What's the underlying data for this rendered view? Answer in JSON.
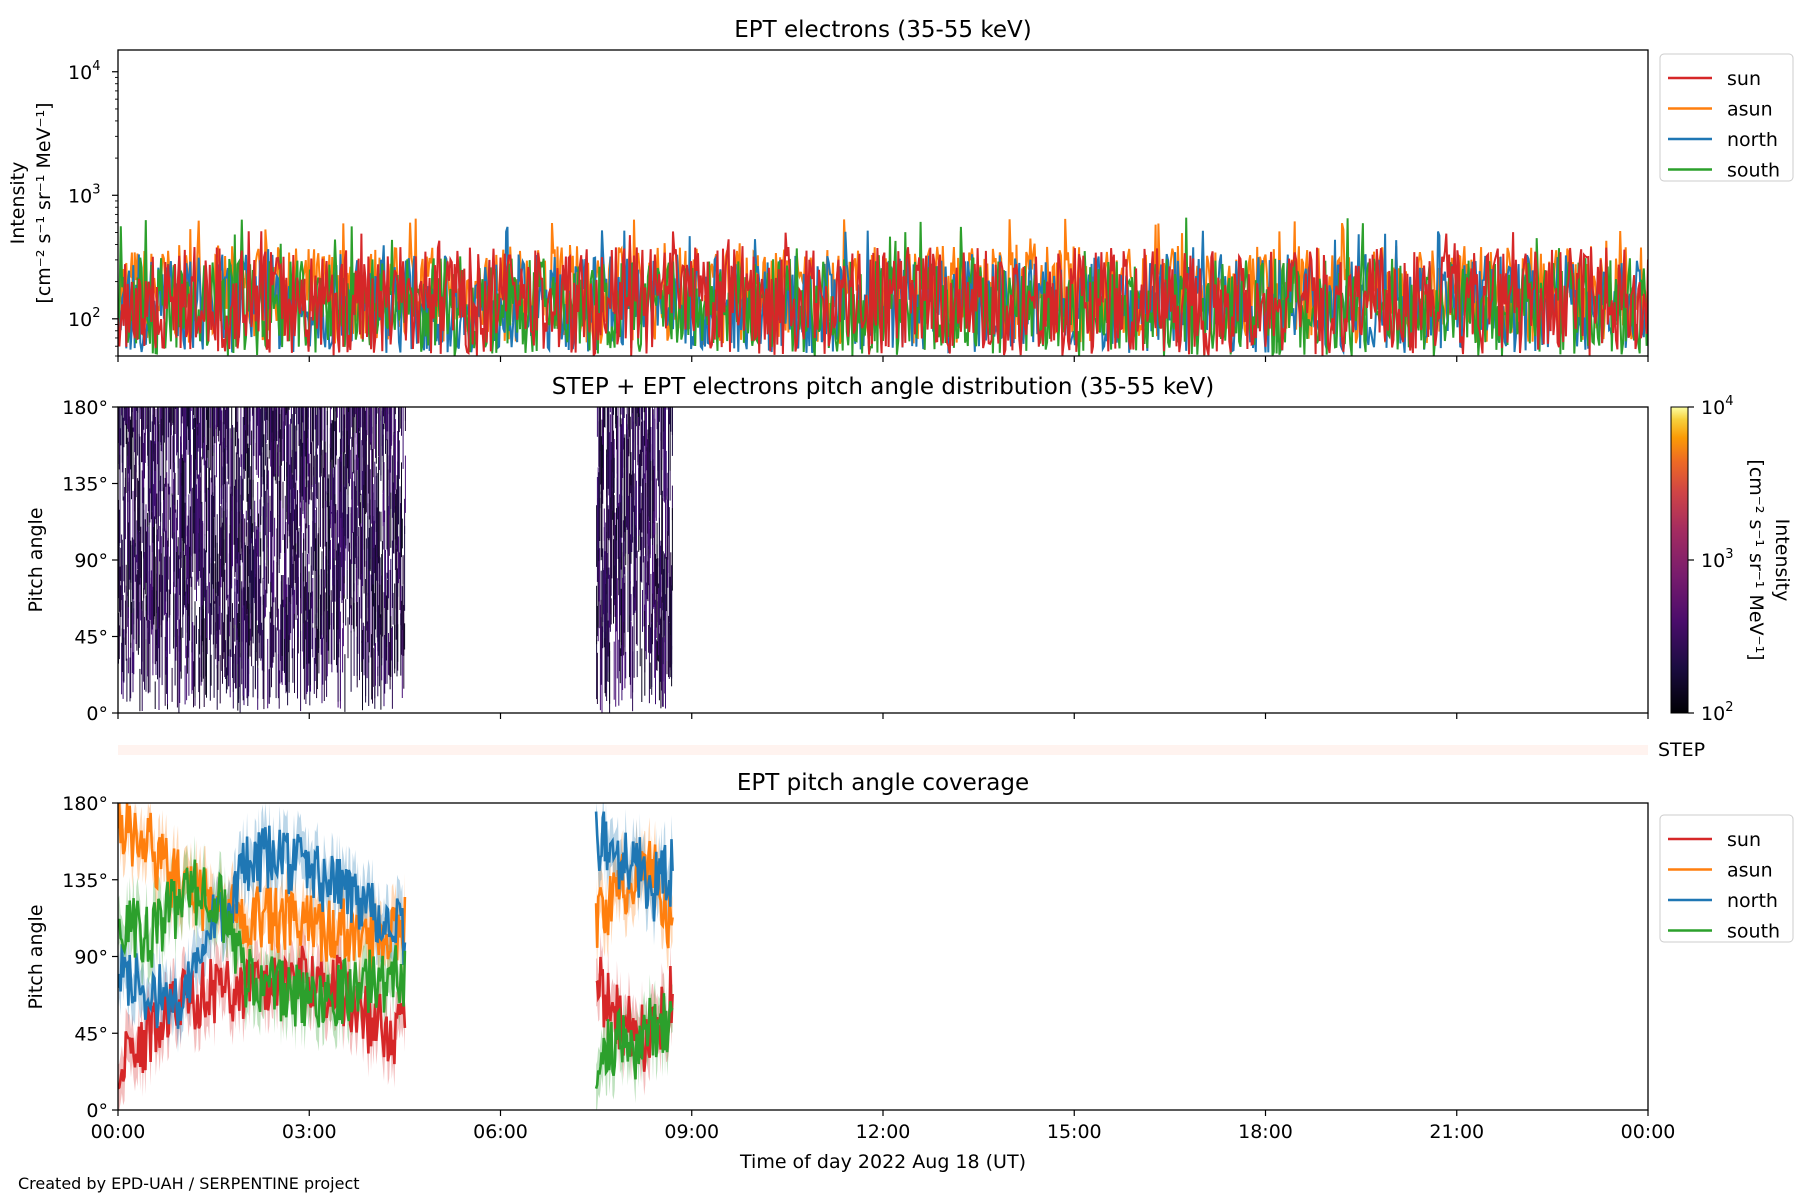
{
  "footer": {
    "credit": "Created by EPD-UAH / SERPENTINE project"
  },
  "colors": {
    "sun": "#d62728",
    "asun": "#ff7f0e",
    "north": "#1f77b4",
    "south": "#2ca02c"
  },
  "chart_data": [
    {
      "type": "line",
      "title": "EPT electrons (35-55 keV)",
      "ylabel_line1": "Intensity",
      "ylabel_line2": "[cm⁻² s⁻¹ sr⁻¹ MeV⁻¹]",
      "yscale": "log",
      "ylim": [
        50,
        15000
      ],
      "yticks": [
        {
          "value": 100,
          "base": "10",
          "exp": "2"
        },
        {
          "value": 1000,
          "base": "10",
          "exp": "3"
        },
        {
          "value": 10000,
          "base": "10",
          "exp": "4"
        }
      ],
      "legend_placement": "upper-right-outside",
      "series": [
        {
          "name": "sun",
          "color": "#d62728",
          "baseline": 170,
          "spread": 0.55,
          "max": 520
        },
        {
          "name": "asun",
          "color": "#ff7f0e",
          "baseline": 190,
          "spread": 0.5,
          "max": 650
        },
        {
          "name": "north",
          "color": "#1f77b4",
          "baseline": 160,
          "spread": 0.5,
          "max": 560
        },
        {
          "name": "south",
          "color": "#2ca02c",
          "baseline": 150,
          "spread": 0.5,
          "max": 660
        }
      ],
      "x_range_hours": [
        0,
        24
      ]
    },
    {
      "type": "heatmap",
      "title": "STEP + EPT electrons pitch angle distribution (35-55 keV)",
      "ylabel": "Pitch angle",
      "ylim": [
        0,
        180
      ],
      "yticks": [
        "0°",
        "45°",
        "90°",
        "135°",
        "180°"
      ],
      "colorbar": {
        "label_line1": "Intensity",
        "label_line2": "[cm⁻² s⁻¹ sr⁻¹ MeV⁻¹]",
        "scale": "log",
        "range": [
          100,
          10000
        ],
        "ticks": [
          {
            "base": "10",
            "exp": "2"
          },
          {
            "base": "10",
            "exp": "3"
          },
          {
            "base": "10",
            "exp": "4"
          }
        ]
      },
      "data_segments_hours": [
        [
          0,
          4.5
        ],
        [
          7.5,
          8.7
        ]
      ]
    },
    {
      "type": "bar",
      "label": "STEP"
    },
    {
      "type": "line",
      "title": "EPT pitch angle coverage",
      "ylabel": "Pitch angle",
      "ylim": [
        0,
        180
      ],
      "yticks": [
        "0°",
        "45°",
        "90°",
        "135°",
        "180°"
      ],
      "xlabel": "Time of day 2022 Aug 18 (UT)",
      "xticks": [
        "00:00",
        "03:00",
        "06:00",
        "09:00",
        "12:00",
        "15:00",
        "18:00",
        "21:00",
        "00:00"
      ],
      "legend_placement": "upper-right-outside",
      "data_segments_hours": [
        [
          0,
          4.5
        ],
        [
          7.5,
          8.7
        ]
      ],
      "series": [
        {
          "name": "sun",
          "color": "#d62728",
          "mean_deg": [
            20,
            45,
            65,
            70,
            72,
            75,
            78,
            70,
            50,
            45
          ],
          "mean_deg_segment2": [
            75,
            55,
            45,
            40,
            70
          ]
        },
        {
          "name": "asun",
          "color": "#ff7f0e",
          "mean_deg": [
            165,
            155,
            130,
            120,
            115,
            110,
            108,
            105,
            100,
            110
          ],
          "mean_deg_segment2": [
            110,
            125,
            140,
            145,
            100
          ]
        },
        {
          "name": "north",
          "color": "#1f77b4",
          "mean_deg": [
            80,
            70,
            60,
            110,
            140,
            150,
            140,
            130,
            120,
            100
          ],
          "mean_deg_segment2": [
            160,
            150,
            145,
            130,
            140
          ]
        },
        {
          "name": "south",
          "color": "#2ca02c",
          "mean_deg": [
            110,
            100,
            125,
            130,
            80,
            70,
            65,
            70,
            75,
            80
          ],
          "mean_deg_segment2": [
            25,
            40,
            35,
            50,
            55
          ]
        }
      ]
    }
  ]
}
